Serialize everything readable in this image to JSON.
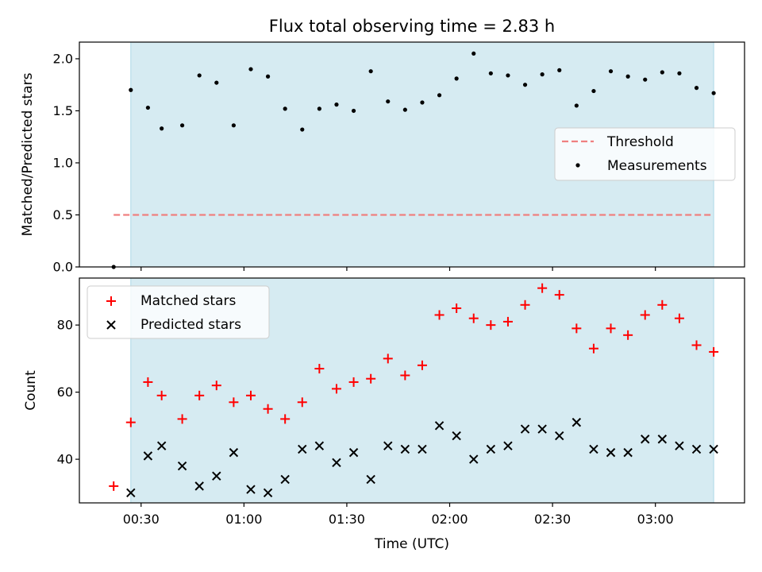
{
  "title": "Flux total observing time = 2.83 h",
  "colors": {
    "shade": "#add8e6",
    "threshold": "#f08080",
    "matched": "#ff0000",
    "predicted": "#000000",
    "measurement": "#000000"
  },
  "chart_data": [
    {
      "type": "scatter",
      "panel": "top",
      "ylabel": "Matched/Predicted stars",
      "xlim_minutes": [
        12,
        206
      ],
      "ylim": [
        0,
        2.16
      ],
      "yticks": [
        0.0,
        0.5,
        1.0,
        1.5,
        2.0
      ],
      "ytick_labels": [
        "0.0",
        "0.5",
        "1.0",
        "1.5",
        "2.0"
      ],
      "shaded_interval": [
        "00:27",
        "03:17"
      ],
      "legend_position": "center-right",
      "threshold": {
        "name": "Threshold",
        "value": 0.5,
        "x_start": "00:22",
        "x_end": "03:17"
      },
      "series": [
        {
          "name": "Measurements",
          "x": [
            "00:22",
            "00:27",
            "00:32",
            "00:36",
            "00:42",
            "00:47",
            "00:52",
            "00:57",
            "01:02",
            "01:07",
            "01:12",
            "01:17",
            "01:22",
            "01:27",
            "01:32",
            "01:37",
            "01:42",
            "01:47",
            "01:52",
            "01:57",
            "02:02",
            "02:07",
            "02:12",
            "02:17",
            "02:22",
            "02:27",
            "02:32",
            "02:37",
            "02:42",
            "02:47",
            "02:52",
            "02:57",
            "03:02",
            "03:07",
            "03:12",
            "03:17"
          ],
          "y": [
            0.0,
            1.7,
            1.53,
            1.33,
            1.36,
            1.84,
            1.77,
            1.36,
            1.9,
            1.83,
            1.52,
            1.32,
            1.52,
            1.56,
            1.5,
            1.88,
            1.59,
            1.51,
            1.58,
            1.65,
            1.81,
            2.05,
            1.86,
            1.84,
            1.75,
            1.85,
            1.89,
            1.55,
            1.69,
            1.88,
            1.83,
            1.8,
            1.87,
            1.86,
            1.72,
            1.67
          ]
        }
      ]
    },
    {
      "type": "scatter",
      "panel": "bottom",
      "xlabel": "Time (UTC)",
      "ylabel": "Count",
      "xlim_minutes": [
        12,
        206
      ],
      "ylim": [
        27,
        94
      ],
      "yticks": [
        40,
        60,
        80
      ],
      "ytick_labels": [
        "40",
        "60",
        "80"
      ],
      "xticks": [
        "00:30",
        "01:00",
        "01:30",
        "02:00",
        "02:30",
        "03:00"
      ],
      "shaded_interval": [
        "00:27",
        "03:17"
      ],
      "legend_position": "upper-left",
      "series": [
        {
          "name": "Matched stars",
          "marker": "+",
          "x": [
            "00:22",
            "00:27",
            "00:32",
            "00:36",
            "00:42",
            "00:47",
            "00:52",
            "00:57",
            "01:02",
            "01:07",
            "01:12",
            "01:17",
            "01:22",
            "01:27",
            "01:32",
            "01:37",
            "01:42",
            "01:47",
            "01:52",
            "01:57",
            "02:02",
            "02:07",
            "02:12",
            "02:17",
            "02:22",
            "02:27",
            "02:32",
            "02:37",
            "02:42",
            "02:47",
            "02:52",
            "02:57",
            "03:02",
            "03:07",
            "03:12",
            "03:17"
          ],
          "y": [
            32,
            51,
            63,
            59,
            52,
            59,
            62,
            57,
            59,
            55,
            52,
            57,
            67,
            61,
            63,
            64,
            70,
            65,
            68,
            83,
            85,
            82,
            80,
            81,
            86,
            91,
            89,
            79,
            73,
            79,
            77,
            83,
            86,
            82,
            74,
            72
          ]
        },
        {
          "name": "Predicted stars",
          "marker": "x",
          "x": [
            "00:27",
            "00:32",
            "00:36",
            "00:42",
            "00:47",
            "00:52",
            "00:57",
            "01:02",
            "01:07",
            "01:12",
            "01:17",
            "01:22",
            "01:27",
            "01:32",
            "01:37",
            "01:42",
            "01:47",
            "01:52",
            "01:57",
            "02:02",
            "02:07",
            "02:12",
            "02:17",
            "02:22",
            "02:27",
            "02:32",
            "02:37",
            "02:42",
            "02:47",
            "02:52",
            "02:57",
            "03:02",
            "03:07",
            "03:12",
            "03:17"
          ],
          "y": [
            30,
            41,
            44,
            38,
            32,
            35,
            42,
            31,
            30,
            34,
            43,
            44,
            39,
            42,
            34,
            44,
            43,
            43,
            50,
            47,
            40,
            43,
            44,
            49,
            49,
            47,
            51,
            43,
            42,
            42,
            46,
            46,
            44,
            43,
            43
          ]
        }
      ]
    }
  ]
}
